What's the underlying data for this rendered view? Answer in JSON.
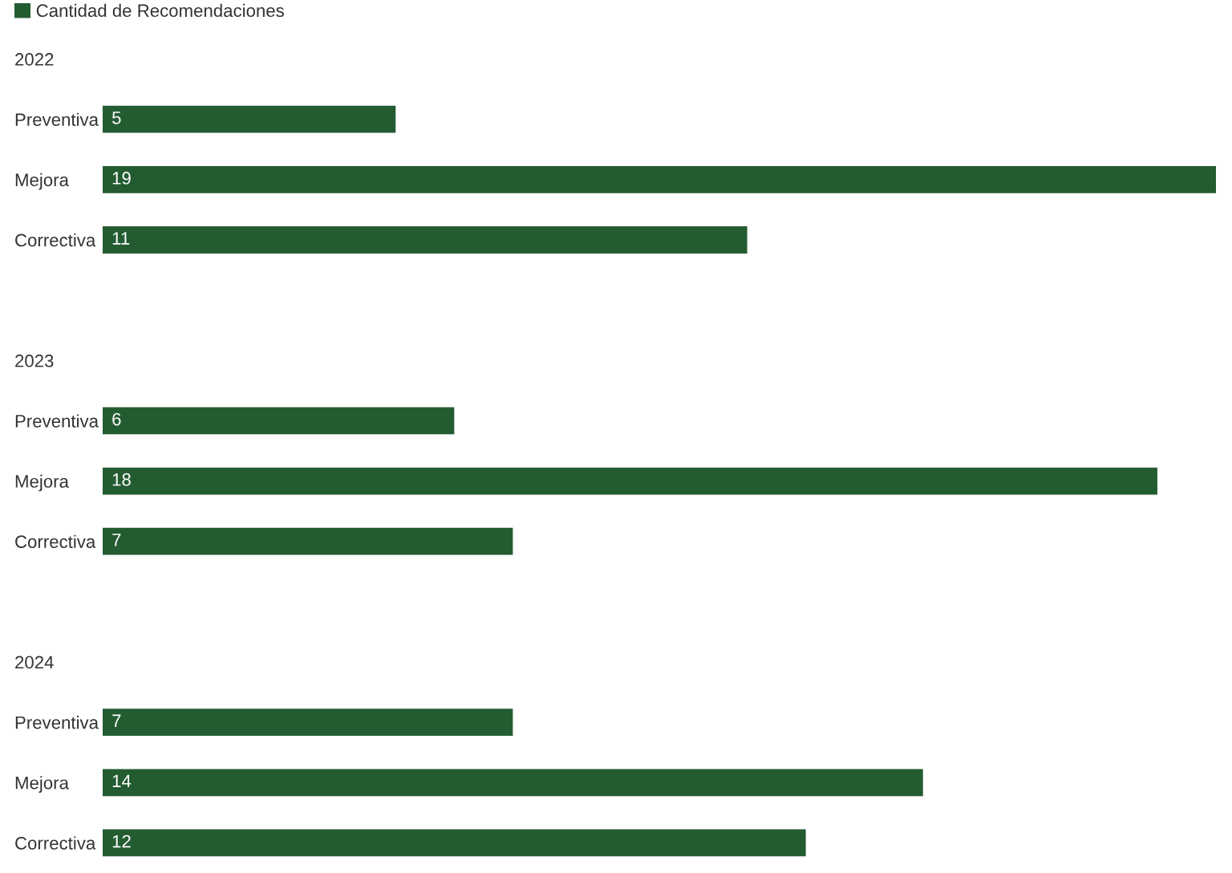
{
  "chart_data": {
    "type": "bar",
    "orientation": "horizontal",
    "categories": [
      "2022",
      "Preventiva",
      "Mejora",
      "Correctiva",
      null,
      "2023",
      "Preventiva",
      "Mejora",
      "Correctiva",
      null,
      "2024",
      "Preventiva",
      "Mejora",
      "Correctiva"
    ],
    "series": [
      {
        "name": "Cantidad de Recomendaciones",
        "color": "#245c32",
        "values": [
          null,
          5,
          19,
          11,
          null,
          null,
          6,
          18,
          7,
          null,
          null,
          7,
          14,
          12
        ]
      }
    ],
    "xlim": [
      0,
      19
    ],
    "tick_labels": "y",
    "data_labels": true,
    "legend": "top left"
  }
}
